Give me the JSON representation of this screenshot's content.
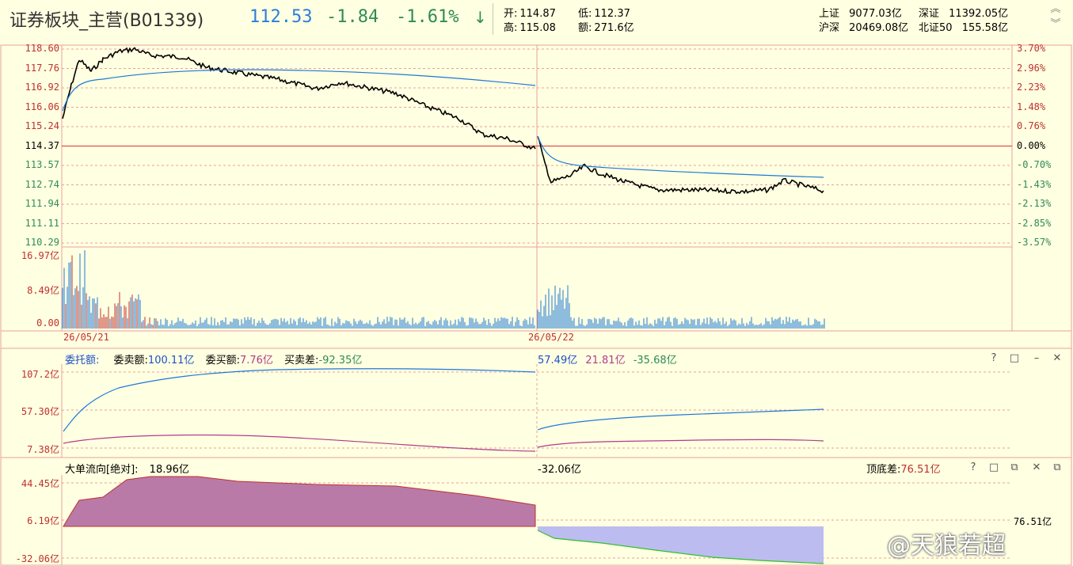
{
  "header": {
    "title": "证券板块_主营(B01339)",
    "price": "112.53",
    "change": "-1.84",
    "change_pct": "-1.61%",
    "arrow": "↓",
    "open_label": "开:",
    "open": "114.87",
    "low_label": "低:",
    "low": "112.37",
    "high_label": "高:",
    "high": "115.08",
    "amount_label": "额:",
    "amount": "271.6亿",
    "indices": {
      "sh_label": "上证",
      "sh": "9077.03亿",
      "sz_label": "深证",
      "sz": "11392.05亿",
      "hs_label": "沪深",
      "hs": "20469.08亿",
      "bz_label": "北证50",
      "bz": "155.58亿"
    }
  },
  "price_chart": {
    "left_ticks": [
      "118.60",
      "117.76",
      "116.92",
      "116.06",
      "115.24",
      "114.37",
      "113.57",
      "112.74",
      "111.94",
      "111.11",
      "110.29"
    ],
    "right_ticks": [
      "3.70%",
      "2.96%",
      "2.23%",
      "1.48%",
      "0.76%",
      "0.00%",
      "-0.70%",
      "-1.43%",
      "-2.13%",
      "-2.85%",
      "-3.57%"
    ],
    "vol_ticks": [
      "16.97亿",
      "8.49亿",
      "0.00"
    ],
    "dates": [
      "26/05/21",
      "26/05/22"
    ]
  },
  "order_panel": {
    "label": "委托额:",
    "sell_label": "委卖额:",
    "sell": "100.11亿",
    "buy_label": "委买额:",
    "buy": "7.76亿",
    "diff_label": "买卖差:",
    "diff": "-92.35亿",
    "day2_sell": "57.49亿",
    "day2_buy": "21.81亿",
    "day2_diff": "-35.68亿",
    "ticks": [
      "107.2亿",
      "57.30亿",
      "7.38亿"
    ]
  },
  "flow_panel": {
    "label": "大单流向[绝对]:",
    "value": "18.96亿",
    "day2_value": "-32.06亿",
    "topbottom_label": "顶底差:",
    "topbottom": "76.51亿",
    "right_value": "76.51亿",
    "ticks": [
      "44.45亿",
      "6.19亿",
      "-32.06亿"
    ]
  },
  "watermark": "@天狼若超",
  "colors": {
    "up": "#c03030",
    "down": "#2e8b57",
    "blue": "#1e78d8",
    "magenta": "#b03c8c",
    "grid": "#e8a0a0"
  }
}
